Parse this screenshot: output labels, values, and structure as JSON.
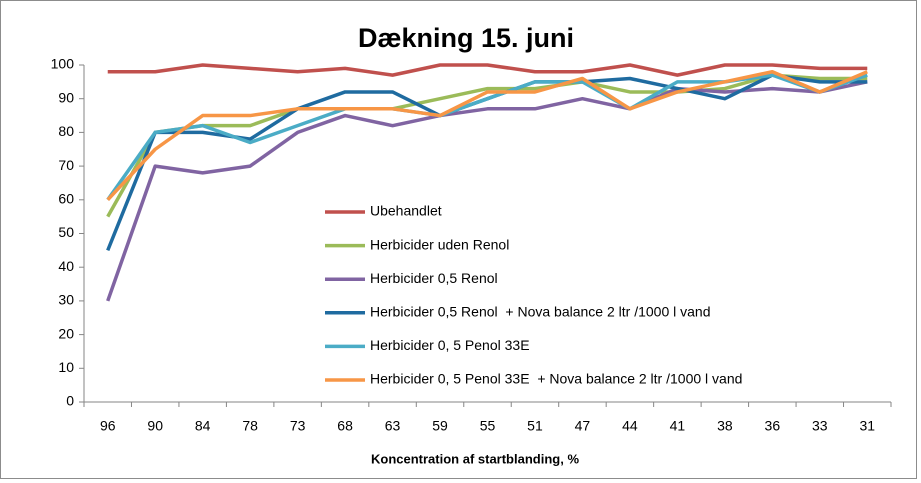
{
  "chart_data": {
    "type": "line",
    "title": "Dækning 15. juni",
    "x_label": "Koncentration af startblanding, %",
    "categories": [
      "96",
      "90",
      "84",
      "78",
      "73",
      "68",
      "63",
      "59",
      "55",
      "51",
      "47",
      "44",
      "41",
      "38",
      "36",
      "33",
      "31"
    ],
    "series": [
      {
        "name": "Ubehandlet",
        "color": "#c0504d",
        "values": [
          98,
          98,
          100,
          99,
          98,
          99,
          97,
          100,
          100,
          98,
          98,
          100,
          97,
          100,
          100,
          99,
          99
        ]
      },
      {
        "name": "Herbicider uden Renol",
        "color": "#9bbb59",
        "values": [
          55,
          80,
          82,
          82,
          87,
          87,
          87,
          90,
          93,
          93,
          95,
          92,
          92,
          93,
          97,
          96,
          96
        ]
      },
      {
        "name": "Herbicider 0,5 Renol",
        "color": "#8064a2",
        "values": [
          30,
          70,
          68,
          70,
          80,
          85,
          82,
          85,
          87,
          87,
          90,
          87,
          93,
          92,
          93,
          92,
          95
        ]
      },
      {
        "name": "Herbicider 0,5 Renol  + Nova balance 2 ltr /1000 l vand",
        "color": "#1f6ba0",
        "values": [
          45,
          80,
          80,
          78,
          87,
          92,
          92,
          85,
          90,
          95,
          95,
          96,
          93,
          90,
          97,
          95,
          95
        ]
      },
      {
        "name": "Herbicider 0, 5 Penol 33E",
        "color": "#4bacc6",
        "values": [
          60,
          80,
          82,
          77,
          82,
          87,
          87,
          85,
          90,
          95,
          95,
          87,
          95,
          95,
          97,
          92,
          97
        ]
      },
      {
        "name": "Herbicider 0, 5 Penol 33E  + Nova balance 2 ltr /1000 l vand",
        "color": "#f79646",
        "values": [
          60,
          75,
          85,
          85,
          87,
          87,
          87,
          85,
          92,
          92,
          96,
          87,
          92,
          95,
          98,
          92,
          98
        ]
      }
    ],
    "ylim": [
      0,
      100
    ],
    "yticks": [
      0,
      10,
      20,
      30,
      40,
      50,
      60,
      70,
      80,
      90,
      100
    ],
    "grid": false,
    "legend_position": "center"
  }
}
